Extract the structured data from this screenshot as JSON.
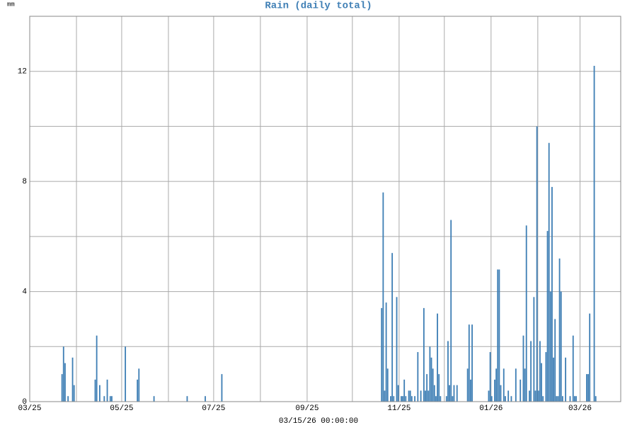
{
  "chart_data": {
    "type": "bar",
    "title": "Rain (daily total)",
    "y_label": "mm",
    "x_label": "03/15/26 00:00:00",
    "x": [
      21,
      22,
      23,
      25,
      28,
      29,
      43,
      44,
      46,
      49,
      51,
      53,
      54,
      63,
      71,
      72,
      82,
      104,
      116,
      127,
      233,
      234,
      235,
      236,
      237,
      239,
      240,
      241,
      243,
      244,
      246,
      247,
      248,
      249,
      251,
      252,
      253,
      255,
      257,
      259,
      261,
      262,
      263,
      264,
      265,
      266,
      267,
      268,
      269,
      270,
      271,
      272,
      276,
      277,
      278,
      279,
      280,
      281,
      283,
      290,
      291,
      292,
      293,
      304,
      305,
      306,
      308,
      309,
      310,
      311,
      312,
      314,
      315,
      317,
      319,
      322,
      325,
      327,
      328,
      329,
      331,
      332,
      334,
      335,
      336,
      337,
      338,
      339,
      340,
      342,
      343,
      344,
      345,
      346,
      347,
      348,
      349,
      350,
      351,
      352,
      353,
      355,
      358,
      360,
      361,
      362,
      369,
      370,
      371,
      374,
      375
    ],
    "values": [
      1.0,
      2.0,
      1.4,
      0.2,
      1.6,
      0.6,
      0.8,
      2.4,
      0.6,
      0.2,
      0.8,
      0.2,
      0.2,
      2.0,
      0.8,
      1.2,
      0.2,
      0.2,
      0.2,
      1.0,
      3.4,
      7.6,
      0.4,
      3.6,
      1.2,
      0.2,
      5.4,
      0.2,
      3.8,
      0.6,
      0.2,
      0.2,
      0.8,
      0.2,
      0.4,
      0.4,
      0.2,
      0.2,
      1.8,
      0.4,
      3.4,
      0.4,
      1.0,
      0.4,
      2.0,
      1.6,
      1.2,
      0.6,
      0.2,
      3.2,
      1.0,
      0.2,
      0.2,
      2.2,
      0.6,
      6.6,
      0.2,
      0.6,
      0.6,
      1.2,
      2.8,
      0.8,
      2.8,
      0.4,
      1.8,
      0.2,
      0.8,
      1.2,
      4.8,
      4.8,
      0.6,
      1.2,
      0.2,
      0.4,
      0.2,
      1.2,
      0.8,
      2.4,
      1.2,
      6.4,
      0.4,
      2.2,
      3.8,
      0.4,
      10.0,
      0.4,
      2.2,
      1.4,
      0.2,
      1.8,
      6.2,
      9.4,
      4.0,
      7.8,
      1.6,
      3.0,
      0.2,
      0.2,
      5.2,
      4.0,
      0.2,
      1.6,
      0.2,
      2.4,
      0.2,
      0.2,
      1.0,
      1.0,
      3.2,
      12.2,
      0.2
    ],
    "color": "#3f7fb5",
    "xlim": [
      0,
      392
    ],
    "xticks": [
      {
        "value": 0,
        "label": "03/25"
      },
      {
        "value": 61,
        "label": "05/25"
      },
      {
        "value": 122,
        "label": "07/25"
      },
      {
        "value": 184,
        "label": "09/25"
      },
      {
        "value": 245,
        "label": "11/25"
      },
      {
        "value": 306,
        "label": "01/26"
      },
      {
        "value": 365,
        "label": "03/26"
      }
    ],
    "xgrid": [
      31,
      92,
      153,
      214,
      275,
      337
    ],
    "ylim": [
      0,
      14
    ],
    "yticks": [
      0,
      4,
      8,
      12
    ],
    "ygrid": [
      2,
      6,
      10
    ],
    "grid": true
  }
}
